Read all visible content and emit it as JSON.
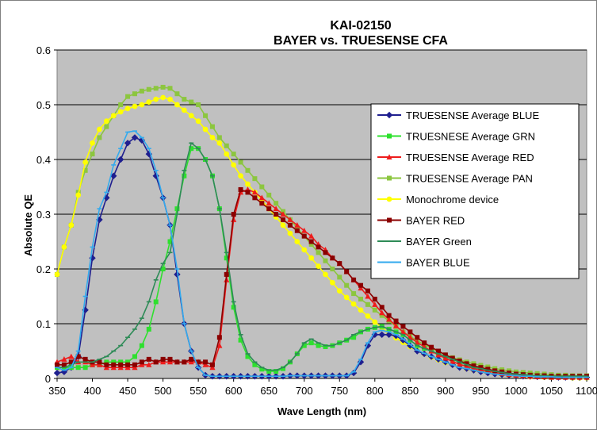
{
  "chart_data": {
    "type": "line",
    "title": "KAI-02150",
    "subtitle": "BAYER vs. TRUESENSE CFA",
    "xlabel": "Wave Length (nm)",
    "ylabel": "Absolute QE",
    "xlim": [
      350,
      1100
    ],
    "ylim": [
      0,
      0.6
    ],
    "xticks": [
      "350",
      "400",
      "450",
      "500",
      "550",
      "600",
      "650",
      "700",
      "750",
      "800",
      "850",
      "900",
      "950",
      "1000",
      "1050",
      "1100"
    ],
    "yticks": [
      "0",
      "0.1",
      "0.2",
      "0.3",
      "0.4",
      "0.5",
      "0.6"
    ],
    "grid": "horizontal",
    "legend_position": "right",
    "plot_background": "#c0c0c0",
    "x": [
      350,
      360,
      370,
      380,
      390,
      400,
      410,
      420,
      430,
      440,
      450,
      460,
      470,
      480,
      490,
      500,
      510,
      520,
      530,
      540,
      550,
      560,
      570,
      580,
      590,
      600,
      610,
      620,
      630,
      640,
      650,
      660,
      670,
      680,
      690,
      700,
      710,
      720,
      730,
      740,
      750,
      760,
      770,
      780,
      790,
      800,
      810,
      820,
      830,
      840,
      850,
      860,
      870,
      880,
      890,
      900,
      910,
      920,
      930,
      940,
      950,
      960,
      970,
      980,
      990,
      1000,
      1010,
      1020,
      1030,
      1040,
      1050,
      1060,
      1070,
      1080,
      1090,
      1100
    ],
    "series": [
      {
        "name": "TRUESENSE Average BLUE",
        "color": "#1f1f8f",
        "marker": "diamond",
        "values": [
          0.01,
          0.012,
          0.02,
          0.04,
          0.125,
          0.22,
          0.29,
          0.33,
          0.37,
          0.4,
          0.43,
          0.44,
          0.435,
          0.41,
          0.37,
          0.33,
          0.28,
          0.19,
          0.1,
          0.05,
          0.02,
          0.006,
          0.004,
          0.004,
          0.004,
          0.004,
          0.004,
          0.004,
          0.004,
          0.004,
          0.004,
          0.004,
          0.004,
          0.005,
          0.005,
          0.005,
          0.005,
          0.005,
          0.005,
          0.005,
          0.005,
          0.005,
          0.01,
          0.03,
          0.06,
          0.08,
          0.08,
          0.08,
          0.078,
          0.07,
          0.06,
          0.05,
          0.045,
          0.04,
          0.035,
          0.03,
          0.025,
          0.02,
          0.018,
          0.015,
          0.012,
          0.01,
          0.008,
          0.007,
          0.006,
          0.005,
          0.004,
          0.004,
          0.003,
          0.003,
          0.003,
          0.002,
          0.002,
          0.002,
          0.002,
          0.002
        ]
      },
      {
        "name": "TRUESNESE Average GRN",
        "color": "#2ee02e",
        "marker": "square",
        "values": [
          0.02,
          0.02,
          0.02,
          0.02,
          0.02,
          0.025,
          0.025,
          0.03,
          0.03,
          0.03,
          0.03,
          0.04,
          0.06,
          0.09,
          0.14,
          0.2,
          0.25,
          0.31,
          0.37,
          0.42,
          0.42,
          0.4,
          0.37,
          0.31,
          0.22,
          0.13,
          0.07,
          0.04,
          0.025,
          0.017,
          0.013,
          0.013,
          0.018,
          0.03,
          0.045,
          0.06,
          0.065,
          0.06,
          0.058,
          0.06,
          0.065,
          0.07,
          0.075,
          0.085,
          0.09,
          0.093,
          0.095,
          0.09,
          0.085,
          0.08,
          0.07,
          0.06,
          0.055,
          0.05,
          0.045,
          0.04,
          0.035,
          0.03,
          0.025,
          0.02,
          0.018,
          0.015,
          0.013,
          0.011,
          0.009,
          0.008,
          0.007,
          0.006,
          0.005,
          0.005,
          0.004,
          0.004,
          0.004,
          0.004,
          0.004,
          0.004
        ]
      },
      {
        "name": "TRUESENSE Average RED",
        "color": "#ee1c1c",
        "marker": "triangle",
        "values": [
          0.03,
          0.035,
          0.04,
          0.03,
          0.03,
          0.025,
          0.025,
          0.02,
          0.02,
          0.02,
          0.02,
          0.02,
          0.025,
          0.025,
          0.03,
          0.03,
          0.03,
          0.03,
          0.03,
          0.03,
          0.03,
          0.025,
          0.02,
          0.06,
          0.18,
          0.29,
          0.34,
          0.345,
          0.34,
          0.33,
          0.32,
          0.31,
          0.3,
          0.29,
          0.28,
          0.27,
          0.26,
          0.245,
          0.235,
          0.22,
          0.21,
          0.195,
          0.18,
          0.165,
          0.15,
          0.135,
          0.12,
          0.108,
          0.096,
          0.085,
          0.075,
          0.066,
          0.058,
          0.05,
          0.043,
          0.037,
          0.031,
          0.026,
          0.022,
          0.018,
          0.015,
          0.013,
          0.011,
          0.009,
          0.007,
          0.006,
          0.005,
          0.004,
          0.003,
          0.003,
          0.002,
          0.002,
          0.002,
          0.002,
          0.002,
          0.002
        ]
      },
      {
        "name": "TRUESENSE Average PAN",
        "color": "#8cc63f",
        "marker": "square",
        "values": [
          0.19,
          0.24,
          0.28,
          0.34,
          0.38,
          0.41,
          0.44,
          0.46,
          0.48,
          0.5,
          0.515,
          0.52,
          0.525,
          0.528,
          0.53,
          0.532,
          0.53,
          0.52,
          0.51,
          0.505,
          0.5,
          0.48,
          0.46,
          0.44,
          0.425,
          0.41,
          0.395,
          0.38,
          0.365,
          0.35,
          0.335,
          0.32,
          0.305,
          0.29,
          0.275,
          0.26,
          0.245,
          0.23,
          0.215,
          0.2,
          0.185,
          0.17,
          0.155,
          0.145,
          0.135,
          0.125,
          0.115,
          0.105,
          0.095,
          0.085,
          0.077,
          0.069,
          0.062,
          0.055,
          0.049,
          0.043,
          0.038,
          0.034,
          0.03,
          0.027,
          0.024,
          0.021,
          0.018,
          0.016,
          0.014,
          0.012,
          0.011,
          0.01,
          0.009,
          0.008,
          0.007,
          0.006,
          0.006,
          0.005,
          0.005,
          0.005
        ]
      },
      {
        "name": "Monochrome device",
        "color": "#ffff00",
        "marker": "circle",
        "values": [
          0.19,
          0.24,
          0.28,
          0.335,
          0.395,
          0.43,
          0.455,
          0.47,
          0.48,
          0.487,
          0.493,
          0.497,
          0.5,
          0.505,
          0.51,
          0.513,
          0.51,
          0.5,
          0.49,
          0.48,
          0.47,
          0.455,
          0.44,
          0.43,
          0.41,
          0.39,
          0.37,
          0.355,
          0.34,
          0.325,
          0.31,
          0.295,
          0.28,
          0.265,
          0.25,
          0.235,
          0.22,
          0.205,
          0.19,
          0.175,
          0.16,
          0.148,
          0.136,
          0.125,
          0.114,
          0.103,
          0.093,
          0.083,
          0.074,
          0.066,
          0.058,
          0.051,
          0.045,
          0.039,
          0.034,
          0.029,
          0.025,
          0.021,
          0.018,
          0.015,
          0.013,
          0.011,
          0.009,
          0.007,
          0.006,
          0.005,
          0.004,
          0.003,
          0.003,
          0.002,
          0.002,
          0.002,
          0.002,
          0.001,
          0.001,
          0.001
        ]
      },
      {
        "name": "BAYER RED",
        "color": "#8b0000",
        "marker": "square",
        "values": [
          0.025,
          0.025,
          0.03,
          0.04,
          0.035,
          0.03,
          0.03,
          0.025,
          0.025,
          0.025,
          0.025,
          0.025,
          0.03,
          0.035,
          0.03,
          0.035,
          0.035,
          0.03,
          0.03,
          0.035,
          0.03,
          0.03,
          0.025,
          0.075,
          0.19,
          0.3,
          0.345,
          0.34,
          0.33,
          0.32,
          0.31,
          0.3,
          0.29,
          0.28,
          0.27,
          0.26,
          0.25,
          0.24,
          0.23,
          0.22,
          0.21,
          0.195,
          0.18,
          0.17,
          0.16,
          0.145,
          0.13,
          0.115,
          0.105,
          0.095,
          0.085,
          0.075,
          0.065,
          0.057,
          0.05,
          0.043,
          0.037,
          0.032,
          0.027,
          0.023,
          0.02,
          0.017,
          0.014,
          0.012,
          0.01,
          0.008,
          0.007,
          0.006,
          0.005,
          0.005,
          0.004,
          0.004,
          0.004,
          0.004,
          0.004,
          0.004
        ]
      },
      {
        "name": "BAYER Green",
        "color": "#2e8b57",
        "marker": "dash",
        "values": [
          0.02,
          0.02,
          0.025,
          0.03,
          0.03,
          0.03,
          0.035,
          0.04,
          0.05,
          0.06,
          0.075,
          0.09,
          0.11,
          0.14,
          0.18,
          0.21,
          0.23,
          0.3,
          0.38,
          0.43,
          0.42,
          0.4,
          0.37,
          0.31,
          0.23,
          0.14,
          0.08,
          0.045,
          0.03,
          0.02,
          0.015,
          0.015,
          0.02,
          0.03,
          0.045,
          0.065,
          0.072,
          0.065,
          0.06,
          0.06,
          0.065,
          0.07,
          0.08,
          0.085,
          0.09,
          0.093,
          0.095,
          0.09,
          0.085,
          0.08,
          0.07,
          0.06,
          0.055,
          0.05,
          0.045,
          0.04,
          0.035,
          0.03,
          0.025,
          0.02,
          0.018,
          0.015,
          0.013,
          0.011,
          0.009,
          0.008,
          0.007,
          0.006,
          0.005,
          0.005,
          0.004,
          0.004,
          0.004,
          0.004,
          0.004,
          0.004
        ]
      },
      {
        "name": "BAYER BLUE",
        "color": "#33aaee",
        "marker": "dash",
        "values": [
          0.02,
          0.015,
          0.02,
          0.05,
          0.15,
          0.24,
          0.31,
          0.34,
          0.39,
          0.42,
          0.45,
          0.452,
          0.44,
          0.42,
          0.38,
          0.33,
          0.28,
          0.2,
          0.1,
          0.05,
          0.02,
          0.006,
          0.004,
          0.004,
          0.004,
          0.004,
          0.004,
          0.004,
          0.004,
          0.004,
          0.004,
          0.004,
          0.004,
          0.005,
          0.005,
          0.005,
          0.005,
          0.005,
          0.005,
          0.005,
          0.005,
          0.005,
          0.012,
          0.035,
          0.065,
          0.085,
          0.088,
          0.085,
          0.08,
          0.072,
          0.062,
          0.052,
          0.046,
          0.04,
          0.035,
          0.03,
          0.025,
          0.02,
          0.018,
          0.015,
          0.012,
          0.01,
          0.008,
          0.007,
          0.006,
          0.005,
          0.004,
          0.004,
          0.003,
          0.003,
          0.003,
          0.002,
          0.002,
          0.002,
          0.002,
          0.002
        ]
      }
    ]
  }
}
